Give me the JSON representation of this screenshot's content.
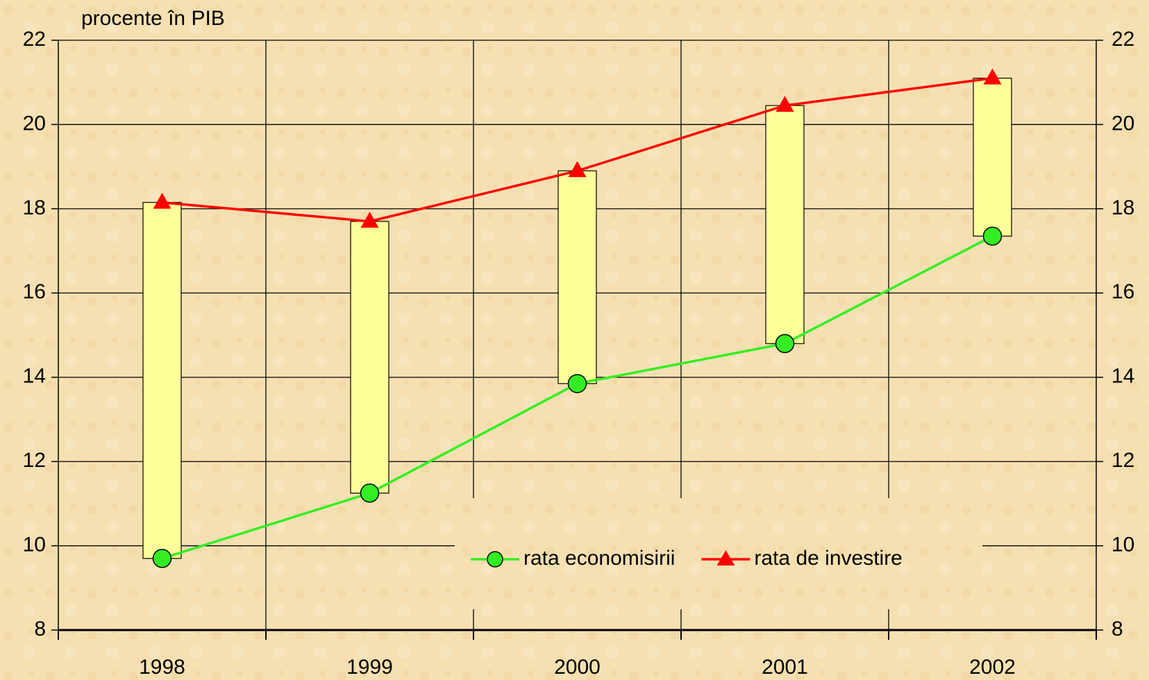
{
  "chart_data": {
    "type": "line",
    "y_label": "procente în PIB",
    "categories": [
      "1998",
      "1999",
      "2000",
      "2001",
      "2002"
    ],
    "series": [
      {
        "name": "rata economisirii",
        "color": "#33ee22",
        "marker": "circle",
        "values": [
          9.7,
          11.25,
          13.85,
          14.8,
          17.35
        ]
      },
      {
        "name": "rata de investire",
        "color": "#ff0000",
        "marker": "triangle",
        "values": [
          18.15,
          17.7,
          18.9,
          20.45,
          21.1
        ]
      }
    ],
    "high_low_bars": {
      "color": "#ffff99"
    },
    "ylim": [
      8,
      22
    ],
    "yticks": [
      8,
      10,
      12,
      14,
      16,
      18,
      20,
      22
    ],
    "y2lim": [
      8,
      22
    ],
    "y2ticks": [
      8,
      10,
      12,
      14,
      16,
      18,
      20,
      22
    ],
    "grid": true,
    "legend": "bottom"
  }
}
